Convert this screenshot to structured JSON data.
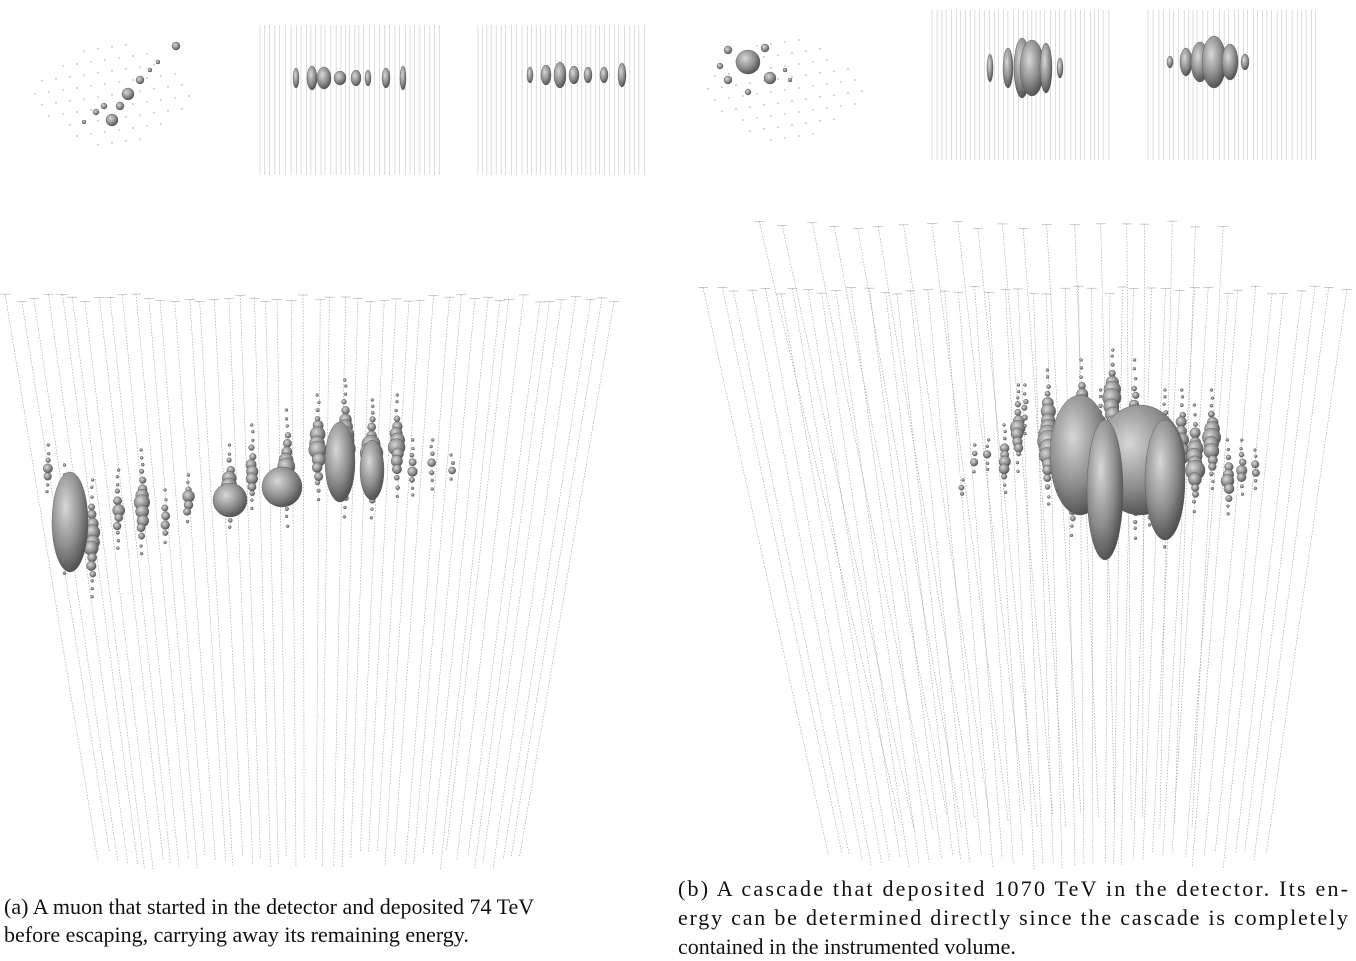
{
  "figure": {
    "panels": [
      {
        "caption_lines": [
          "(a) A muon that started in the detector and deposited 74 TeV",
          "before escaping, carrying away its remaining energy."
        ]
      },
      {
        "caption_lines": [
          "(b) A cascade that deposited 1070 TeV in the detector. Its en-",
          "ergy can be determined directly since the cascade is completely",
          "contained in the instrumented volume."
        ]
      }
    ]
  }
}
